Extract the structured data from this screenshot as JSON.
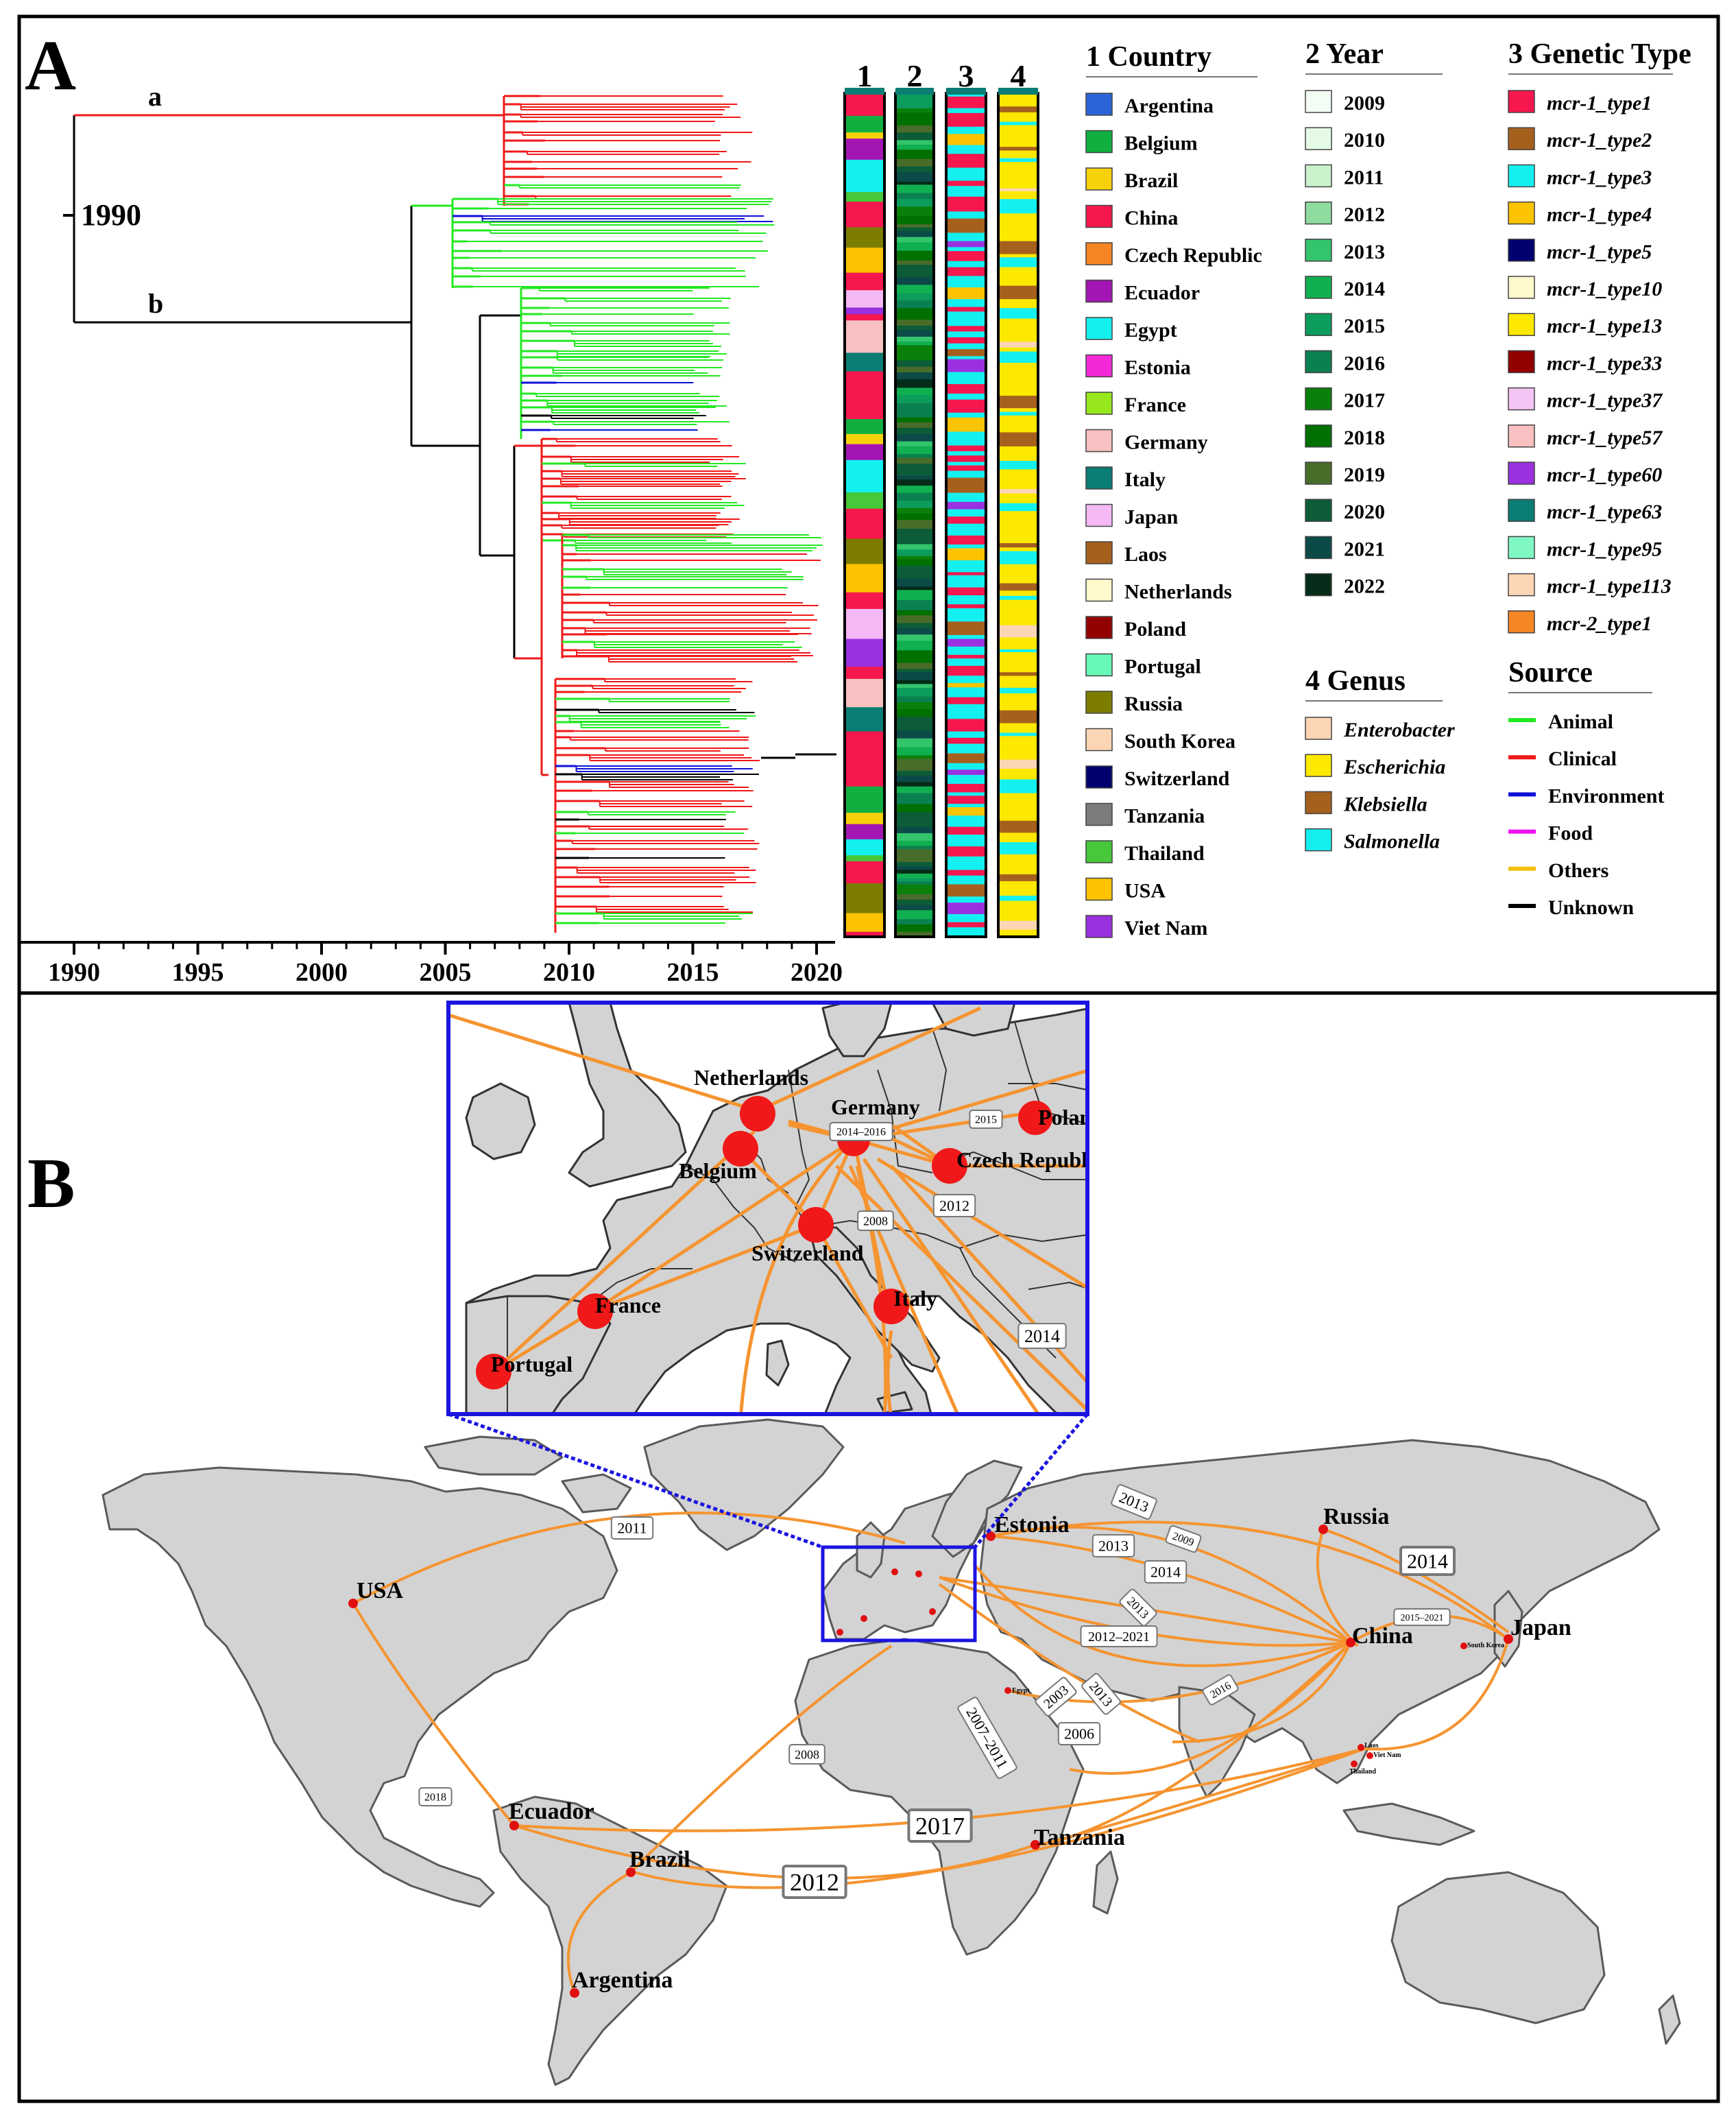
{
  "panelA": {
    "letter": "A",
    "tree": {
      "root_label": "1990",
      "clade_a": "a",
      "clade_b": "b",
      "axis_years": [
        "1990",
        "1995",
        "2000",
        "2005",
        "2010",
        "2015",
        "2020"
      ]
    },
    "strip_labels": [
      "1",
      "2",
      "3",
      "4"
    ],
    "legends": {
      "country": {
        "title": "1 Country",
        "items": [
          {
            "label": "Argentina",
            "color": "#2b64d8"
          },
          {
            "label": "Belgium",
            "color": "#10b040"
          },
          {
            "label": "Brazil",
            "color": "#f7d20b"
          },
          {
            "label": "China",
            "color": "#f5174d"
          },
          {
            "label": "Czech Republic",
            "color": "#f68524"
          },
          {
            "label": "Ecuador",
            "color": "#a316b3"
          },
          {
            "label": "Egypt",
            "color": "#14f0f0"
          },
          {
            "label": "Estonia",
            "color": "#f428d6"
          },
          {
            "label": "France",
            "color": "#96e81c"
          },
          {
            "label": "Germany",
            "color": "#f8c0c0"
          },
          {
            "label": "Italy",
            "color": "#0a7d74"
          },
          {
            "label": "Japan",
            "color": "#f4b8f4"
          },
          {
            "label": "Laos",
            "color": "#a6601e"
          },
          {
            "label": "Netherlands",
            "color": "#fff8cc"
          },
          {
            "label": "Poland",
            "color": "#930000"
          },
          {
            "label": "Portugal",
            "color": "#66f9b8"
          },
          {
            "label": "Russia",
            "color": "#7c7c00"
          },
          {
            "label": "South Korea",
            "color": "#fcd6b4"
          },
          {
            "label": "Switzerland",
            "color": "#00006e"
          },
          {
            "label": "Tanzania",
            "color": "#7c7c7c"
          },
          {
            "label": "Thailand",
            "color": "#46c83a"
          },
          {
            "label": "USA",
            "color": "#fcc300"
          },
          {
            "label": "Viet Nam",
            "color": "#9a30e0"
          }
        ]
      },
      "year": {
        "title": "2 Year",
        "items": [
          {
            "label": "2009",
            "color": "#f4fdf4"
          },
          {
            "label": "2010",
            "color": "#e4fae6"
          },
          {
            "label": "2011",
            "color": "#c8f2cc"
          },
          {
            "label": "2012",
            "color": "#8edc9e"
          },
          {
            "label": "2013",
            "color": "#34c46c"
          },
          {
            "label": "2014",
            "color": "#10b050"
          },
          {
            "label": "2015",
            "color": "#0c9c5c"
          },
          {
            "label": "2016",
            "color": "#0a8050"
          },
          {
            "label": "2017",
            "color": "#0a800a"
          },
          {
            "label": "2018",
            "color": "#007000"
          },
          {
            "label": "2019",
            "color": "#486c2a"
          },
          {
            "label": "2020",
            "color": "#0c5c38"
          },
          {
            "label": "2021",
            "color": "#0c4a48"
          },
          {
            "label": "2022",
            "color": "#042c18"
          }
        ]
      },
      "genetic": {
        "title": "3 Genetic Type",
        "items": [
          {
            "label": "mcr-1_type1",
            "color": "#f5174d"
          },
          {
            "label": "mcr-1_type2",
            "color": "#a6601e"
          },
          {
            "label": "mcr-1_type3",
            "color": "#14f0f0"
          },
          {
            "label": "mcr-1_type4",
            "color": "#fcc300"
          },
          {
            "label": "mcr-1_type5",
            "color": "#00006e"
          },
          {
            "label": "mcr-1_type10",
            "color": "#fff8cc"
          },
          {
            "label": "mcr-1_type13",
            "color": "#fde800"
          },
          {
            "label": "mcr-1_type33",
            "color": "#930000"
          },
          {
            "label": "mcr-1_type37",
            "color": "#f4c4f4"
          },
          {
            "label": "mcr-1_type57",
            "color": "#f8c0c0"
          },
          {
            "label": "mcr-1_type60",
            "color": "#9a30e0"
          },
          {
            "label": "mcr-1_type63",
            "color": "#0a7d74"
          },
          {
            "label": "mcr-1_type95",
            "color": "#80f8c4"
          },
          {
            "label": "mcr-1_type113",
            "color": "#fcd6b4"
          },
          {
            "label": "mcr-2_type1",
            "color": "#f68524"
          }
        ]
      },
      "genus": {
        "title": "4 Genus",
        "items": [
          {
            "label": "Enterobacter",
            "color": "#fcd6b4"
          },
          {
            "label": "Escherichia",
            "color": "#fde800"
          },
          {
            "label": "Klebsiella",
            "color": "#a6601e"
          },
          {
            "label": "Salmonella",
            "color": "#14f0f0"
          }
        ]
      },
      "source": {
        "title": "Source",
        "items": [
          {
            "label": "Animal",
            "color": "#22e822"
          },
          {
            "label": "Clinical",
            "color": "#f01818"
          },
          {
            "label": "Environment",
            "color": "#1010d8"
          },
          {
            "label": "Food",
            "color": "#f010f0"
          },
          {
            "label": "Others",
            "color": "#f4c010"
          },
          {
            "label": "Unknown",
            "color": "#000000"
          }
        ]
      }
    }
  },
  "panelB": {
    "letter": "B",
    "world_countries": [
      "USA",
      "Ecuador",
      "Brazil",
      "Argentina",
      "Estonia",
      "Russia",
      "China",
      "Japan",
      "Tanzania"
    ],
    "world_small_labels": [
      "South Korea",
      "Laos",
      "Viet Nam",
      "Thailand",
      "Egypt"
    ],
    "world_years": [
      "2011",
      "2013",
      "2013",
      "2009",
      "2014",
      "2013",
      "2012–2021",
      "2013",
      "2003",
      "2006",
      "2016",
      "2007–2011",
      "2008",
      "2018",
      "2017",
      "2012",
      "2014",
      "2015–2021"
    ],
    "inset_countries": [
      "Netherlands",
      "Germany",
      "Poland",
      "Belgium",
      "Czech Republic",
      "Switzerland",
      "France",
      "Italy",
      "Portugal"
    ],
    "inset_years": [
      "2014–2016",
      "2015",
      "2012",
      "2008",
      "2014"
    ]
  }
}
